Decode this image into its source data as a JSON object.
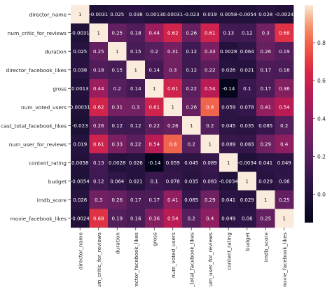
{
  "chart_data": {
    "type": "heatmap",
    "title": "",
    "xlabel": "",
    "ylabel": "",
    "colormap": "rocket",
    "vmin": -0.15,
    "vmax": 1.0,
    "colorbar_ticks": [
      0.0,
      0.2,
      0.4,
      0.6,
      0.8
    ],
    "colorbar_tick_labels": [
      "0.0",
      "0.2",
      "0.4",
      "0.6",
      "0.8"
    ],
    "labels": [
      "director_name",
      "num_critic_for_reviews",
      "duration",
      "director_facebook_likes",
      "gross",
      "num_voted_users",
      "cast_total_facebook_likes",
      "num_user_for_reviews",
      "content_rating",
      "budget",
      "imdb_score",
      "movie_facebook_likes"
    ],
    "values": [
      [
        1,
        -0.0031,
        0.025,
        0.038,
        0.0013,
        0.00031,
        -0.023,
        0.019,
        0.0058,
        -0.0054,
        0.028,
        -0.0024
      ],
      [
        -0.0031,
        1,
        0.25,
        0.18,
        0.44,
        0.62,
        0.26,
        0.61,
        0.13,
        0.12,
        0.3,
        0.68
      ],
      [
        0.025,
        0.25,
        1,
        0.15,
        0.2,
        0.31,
        0.12,
        0.33,
        0.0028,
        0.064,
        0.26,
        0.19
      ],
      [
        0.038,
        0.18,
        0.15,
        1,
        0.14,
        0.3,
        0.12,
        0.22,
        0.026,
        0.021,
        0.17,
        0.16
      ],
      [
        0.0013,
        0.44,
        0.2,
        0.14,
        1,
        0.61,
        0.22,
        0.54,
        -0.14,
        0.1,
        0.17,
        0.36
      ],
      [
        0.00031,
        0.62,
        0.31,
        0.3,
        0.61,
        1,
        0.26,
        0.8,
        0.059,
        0.078,
        0.41,
        0.54
      ],
      [
        -0.023,
        0.26,
        0.12,
        0.12,
        0.22,
        0.26,
        1,
        0.2,
        0.045,
        0.035,
        0.085,
        0.2
      ],
      [
        0.019,
        0.61,
        0.33,
        0.22,
        0.54,
        0.8,
        0.2,
        1,
        0.089,
        0.083,
        0.29,
        0.4
      ],
      [
        0.0058,
        0.13,
        0.0028,
        0.026,
        -0.14,
        0.059,
        0.045,
        0.089,
        1,
        -0.0034,
        0.041,
        0.049
      ],
      [
        -0.0054,
        0.12,
        0.064,
        0.021,
        0.1,
        0.078,
        0.035,
        0.083,
        -0.0034,
        1,
        0.029,
        0.06
      ],
      [
        0.028,
        0.3,
        0.26,
        0.17,
        0.17,
        0.41,
        0.085,
        0.29,
        0.041,
        0.029,
        1,
        0.25
      ],
      [
        -0.0024,
        0.68,
        0.19,
        0.16,
        0.36,
        0.54,
        0.2,
        0.4,
        0.049,
        0.06,
        0.25,
        1
      ]
    ],
    "cell_labels": [
      [
        "1",
        "-0.0031",
        "0.025",
        "0.038",
        "0.0013",
        "0.00031",
        "-0.023",
        "0.019",
        "0.0058",
        "-0.0054",
        "0.028",
        "-0.0024"
      ],
      [
        "-0.0031",
        "1",
        "0.25",
        "0.18",
        "0.44",
        "0.62",
        "0.26",
        "0.61",
        "0.13",
        "0.12",
        "0.3",
        "0.68"
      ],
      [
        "0.025",
        "0.25",
        "1",
        "0.15",
        "0.2",
        "0.31",
        "0.12",
        "0.33",
        "0.0028",
        "0.064",
        "0.26",
        "0.19"
      ],
      [
        "0.038",
        "0.18",
        "0.15",
        "1",
        "0.14",
        "0.3",
        "0.12",
        "0.22",
        "0.026",
        "0.021",
        "0.17",
        "0.16"
      ],
      [
        "0.0013",
        "0.44",
        "0.2",
        "0.14",
        "1",
        "0.61",
        "0.22",
        "0.54",
        "-0.14",
        "0.1",
        "0.17",
        "0.36"
      ],
      [
        "0.00031",
        "0.62",
        "0.31",
        "0.3",
        "0.61",
        "1",
        "0.26",
        "0.8",
        "0.059",
        "0.078",
        "0.41",
        "0.54"
      ],
      [
        "-0.023",
        "0.26",
        "0.12",
        "0.12",
        "0.22",
        "0.26",
        "1",
        "0.2",
        "0.045",
        "0.035",
        "0.085",
        "0.2"
      ],
      [
        "0.019",
        "0.61",
        "0.33",
        "0.22",
        "0.54",
        "0.8",
        "0.2",
        "1",
        "0.089",
        "0.083",
        "0.29",
        "0.4"
      ],
      [
        "0.0058",
        "0.13",
        "0.0028",
        "0.026",
        "-0.14",
        "0.059",
        "0.045",
        "0.089",
        "1",
        "-0.0034",
        "0.041",
        "0.049"
      ],
      [
        "-0.0054",
        "0.12",
        "0.064",
        "0.021",
        "0.1",
        "0.078",
        "0.035",
        "0.083",
        "-0.0034",
        "1",
        "0.029",
        "0.06"
      ],
      [
        "0.028",
        "0.3",
        "0.26",
        "0.17",
        "0.17",
        "0.41",
        "0.085",
        "0.29",
        "0.041",
        "0.029",
        "1",
        "0.25"
      ],
      [
        "-0.0024",
        "0.68",
        "0.19",
        "0.16",
        "0.36",
        "0.54",
        "0.2",
        "0.4",
        "0.049",
        "0.06",
        "0.25",
        "1"
      ]
    ],
    "grid": false,
    "legend": "colorbar-right"
  }
}
